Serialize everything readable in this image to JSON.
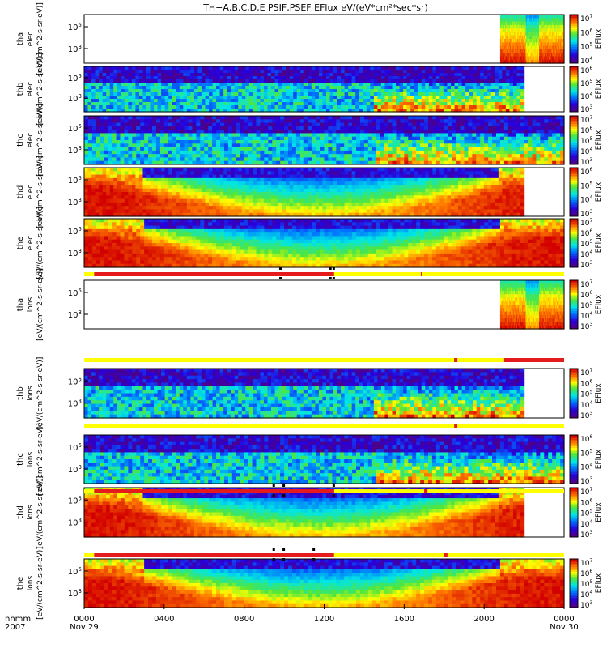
{
  "title": "TH−A,B,C,D,E PSIF,PSEF EFlux eV/(eV*cm²*sec*sr)",
  "colors": {
    "bar_red": "#e41a1c",
    "bar_yellow": "#ffff00",
    "bar_black": "#000000"
  },
  "chart_data": [
    {
      "type": "heatmap",
      "probe": "tha",
      "species": "elec",
      "ylabel_units": "[eV/(cm^2-s-sr-eV)]",
      "ytick_labels": [
        "10^5",
        "10^3"
      ],
      "cbar_ticks": [
        "10^7",
        "10^6",
        "10^5",
        "10^4"
      ],
      "cbar_label": "EFlux",
      "data_start_hhmm": "2048",
      "data_end_hhmm": "2400"
    },
    {
      "type": "heatmap",
      "probe": "thb",
      "species": "elec",
      "ylabel_units": "[eV/(cm^2-s-sr-eV)]",
      "ytick_labels": [
        "10^5",
        "10^3"
      ],
      "cbar_ticks": [
        "10^6",
        "10^5",
        "10^4",
        "10^3"
      ],
      "cbar_label": "EFlux",
      "data_start_hhmm": "0000",
      "data_end_hhmm": "2200"
    },
    {
      "type": "heatmap",
      "probe": "thc",
      "species": "elec",
      "ylabel_units": "[eV/(cm^2-s-sr-eV)]",
      "ytick_labels": [
        "10^5",
        "10^3"
      ],
      "cbar_ticks": [
        "10^7",
        "10^6",
        "10^5",
        "10^4",
        "10^3"
      ],
      "cbar_label": "EFlux",
      "data_start_hhmm": "0000",
      "data_end_hhmm": "2400"
    },
    {
      "type": "heatmap",
      "probe": "thd",
      "species": "elec",
      "ylabel_units": "[eV/(cm^2-s-sr-eV)]",
      "ytick_labels": [
        "10^5",
        "10^3"
      ],
      "cbar_ticks": [
        "10^6",
        "10^5",
        "10^4",
        "10^3"
      ],
      "cbar_label": "EFlux",
      "data_start_hhmm": "0000",
      "data_end_hhmm": "2200"
    },
    {
      "type": "heatmap",
      "probe": "the",
      "species": "elec",
      "ylabel_units": "[eV/(cm^2-s-sr-eV)]",
      "ytick_labels": [
        "10^5",
        "10^3"
      ],
      "cbar_ticks": [
        "10^7",
        "10^6",
        "10^5",
        "10^4",
        "10^3"
      ],
      "cbar_label": "EFlux",
      "data_start_hhmm": "0000",
      "data_end_hhmm": "2400"
    },
    {
      "type": "heatmap",
      "probe": "tha",
      "species": "ions",
      "ylabel_units": "[eV/(cm^2-s-sr-eV)]",
      "ytick_labels": [
        "10^5",
        "10^3"
      ],
      "cbar_ticks": [
        "10^7",
        "10^6",
        "10^5",
        "10^4",
        "10^3"
      ],
      "cbar_label": "EFlux",
      "data_start_hhmm": "2048",
      "data_end_hhmm": "2400"
    },
    {
      "type": "heatmap",
      "probe": "thb",
      "species": "ions",
      "ylabel_units": "[eV/(cm^2-s-sr-eV)]",
      "ytick_labels": [
        "10^5",
        "10^3"
      ],
      "cbar_ticks": [
        "10^7",
        "10^6",
        "10^5",
        "10^4",
        "10^3"
      ],
      "cbar_label": "EFlux",
      "data_start_hhmm": "0000",
      "data_end_hhmm": "2200"
    },
    {
      "type": "heatmap",
      "probe": "thc",
      "species": "ions",
      "ylabel_units": "[eV/(cm^2-s-sr-eV)]",
      "ytick_labels": [
        "10^5",
        "10^3"
      ],
      "cbar_ticks": [
        "10^6",
        "10^5",
        "10^4",
        "10^3"
      ],
      "cbar_label": "EFlux",
      "data_start_hhmm": "0000",
      "data_end_hhmm": "2400"
    },
    {
      "type": "heatmap",
      "probe": "thd",
      "species": "ions",
      "ylabel_units": "[eV/(cm^2-s-sr-eV)]",
      "ytick_labels": [
        "10^5",
        "10^3"
      ],
      "cbar_ticks": [
        "10^7",
        "10^6",
        "10^5",
        "10^4",
        "10^3"
      ],
      "cbar_label": "EFlux",
      "data_start_hhmm": "0000",
      "data_end_hhmm": "2200"
    },
    {
      "type": "heatmap",
      "probe": "the",
      "species": "ions",
      "ylabel_units": "[eV/(cm^2-s-sr-eV)]",
      "ytick_labels": [
        "10^5",
        "10^3"
      ],
      "cbar_ticks": [
        "10^7",
        "10^6",
        "10^5",
        "10^4",
        "10^3"
      ],
      "cbar_label": "EFlux",
      "data_start_hhmm": "0000",
      "data_end_hhmm": "2400"
    }
  ],
  "mode_bars": [
    {
      "segments": [
        {
          "from": "0000",
          "to": "0030",
          "color": "yellow"
        },
        {
          "from": "0030",
          "to": "1230",
          "color": "red"
        },
        {
          "from": "1230",
          "to": "2400",
          "color": "yellow"
        },
        {
          "from": "1650",
          "to": "1655",
          "color": "red"
        }
      ],
      "ticks": [
        "0950",
        "1220",
        "1230"
      ]
    },
    {
      "segments": [
        {
          "from": "0000",
          "to": "1830",
          "color": "yellow"
        },
        {
          "from": "1830",
          "to": "1840",
          "color": "red"
        },
        {
          "from": "1840",
          "to": "2100",
          "color": "yellow"
        },
        {
          "from": "2100",
          "to": "2400",
          "color": "red"
        }
      ],
      "ticks": []
    },
    {
      "segments": [
        {
          "from": "0000",
          "to": "1830",
          "color": "yellow"
        },
        {
          "from": "1830",
          "to": "1840",
          "color": "red"
        },
        {
          "from": "1840",
          "to": "2400",
          "color": "yellow"
        }
      ],
      "ticks": []
    },
    {
      "segments": [
        {
          "from": "0000",
          "to": "0030",
          "color": "yellow"
        },
        {
          "from": "0030",
          "to": "1230",
          "color": "red"
        },
        {
          "from": "1230",
          "to": "2400",
          "color": "yellow"
        },
        {
          "from": "1700",
          "to": "1710",
          "color": "red"
        }
      ],
      "ticks": [
        "0930",
        "1000",
        "1230"
      ]
    },
    {
      "segments": [
        {
          "from": "0000",
          "to": "0030",
          "color": "yellow"
        },
        {
          "from": "0030",
          "to": "1230",
          "color": "red"
        },
        {
          "from": "1230",
          "to": "2400",
          "color": "yellow"
        },
        {
          "from": "1800",
          "to": "1810",
          "color": "red"
        }
      ],
      "ticks": [
        "0930",
        "1000",
        "1130"
      ]
    }
  ],
  "xaxis": {
    "ticks": [
      "0000",
      "0400",
      "0800",
      "1200",
      "1600",
      "2000",
      "0000"
    ],
    "date_left": "Nov 29",
    "date_right": "Nov 30",
    "label_hhmm": "hhmm",
    "label_year": "2007"
  }
}
